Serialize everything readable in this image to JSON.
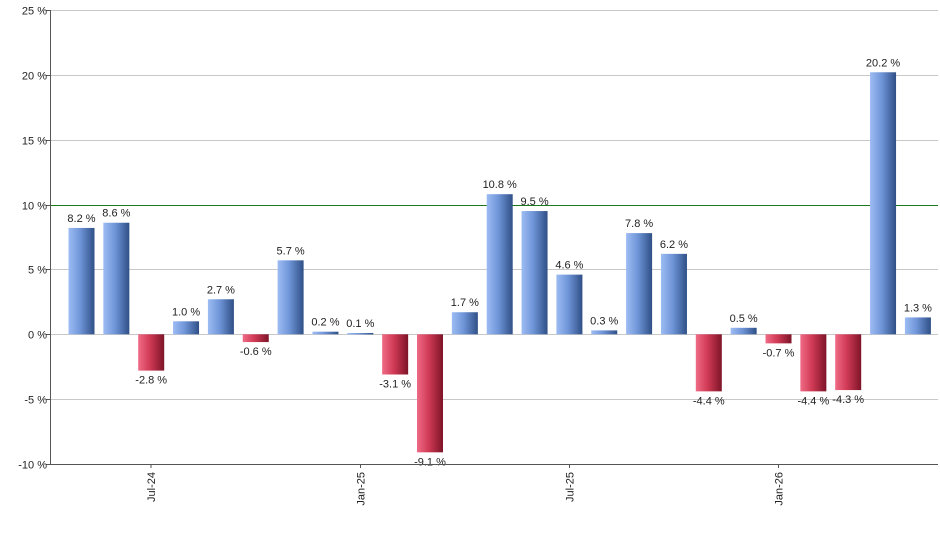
{
  "chart_data": {
    "type": "bar",
    "title": "",
    "xlabel": "",
    "ylabel": "",
    "ylim": [
      -10,
      25
    ],
    "yticks": [
      -10,
      -5,
      0,
      5,
      10,
      15,
      20,
      25
    ],
    "ytick_labels": [
      "-10 %",
      "-5 %",
      "0 %",
      "5 %",
      "10 %",
      "15 %",
      "20 %",
      "25 %"
    ],
    "grid": true,
    "legend": "none",
    "reference_line": {
      "value": 10,
      "color": "#1a7a1a"
    },
    "xtick_labels": [
      {
        "label": "Jul-24",
        "index": 2
      },
      {
        "label": "Jan-25",
        "index": 8
      },
      {
        "label": "Jul-25",
        "index": 14
      },
      {
        "label": "Jan-26",
        "index": 20
      }
    ],
    "categories": [
      "2024-05",
      "2024-06",
      "2024-07",
      "2024-08",
      "2024-09",
      "2024-10",
      "2024-11",
      "2024-12",
      "2025-01",
      "2025-02",
      "2025-03",
      "2025-04",
      "2025-05",
      "2025-06",
      "2025-07",
      "2025-08",
      "2025-09",
      "2025-10",
      "2025-11",
      "2025-12",
      "2026-01",
      "2026-02",
      "2026-03",
      "2026-04",
      "2026-05"
    ],
    "values": [
      8.2,
      8.6,
      -2.8,
      1.0,
      2.7,
      -0.6,
      5.7,
      0.2,
      0.1,
      -3.1,
      -9.1,
      1.7,
      10.8,
      9.5,
      4.6,
      0.3,
      7.8,
      6.2,
      -4.4,
      0.5,
      -0.7,
      -4.4,
      -4.3,
      20.2,
      1.3
    ],
    "value_labels": [
      "8.2 %",
      "8.6 %",
      "-2.8 %",
      "1.0 %",
      "2.7 %",
      "-0.6 %",
      "5.7 %",
      "0.2 %",
      "0.1 %",
      "-3.1 %",
      "-9.1 %",
      "1.7 %",
      "10.8 %",
      "9.5 %",
      "4.6 %",
      "0.3 %",
      "7.8 %",
      "6.2 %",
      "-4.4 %",
      "0.5 %",
      "-0.7 %",
      "-4.4 %",
      "-4.3 %",
      "20.2 %",
      "1.3 %"
    ],
    "colors": {
      "positive": "#6f95d8",
      "negative": "#d03a55",
      "grid": "#c8c8c8",
      "axis": "#555555"
    }
  }
}
